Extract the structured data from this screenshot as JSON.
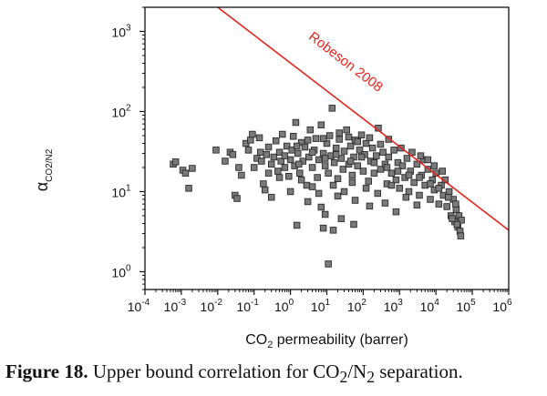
{
  "caption": {
    "label": "Figure 18.",
    "text_parts": [
      "Upper bound correlation for CO",
      "2",
      "/N",
      "2",
      " separation."
    ]
  },
  "chart_data": {
    "type": "scatter",
    "title": "",
    "xlabel": {
      "base": "CO",
      "sub": "2",
      "rest": " permeability (barrer)"
    },
    "ylabel": {
      "base": "α",
      "sub": "CO2/N2"
    },
    "xscale": "log",
    "yscale": "log",
    "xlim": [
      0.0001,
      1000000
    ],
    "ylim": [
      0.6,
      2000
    ],
    "xticks": [
      {
        "value": 0.0001,
        "base": "10",
        "exp": "-4"
      },
      {
        "value": 0.001,
        "base": "10",
        "exp": "-3"
      },
      {
        "value": 0.01,
        "base": "10",
        "exp": "-2"
      },
      {
        "value": 0.1,
        "base": "10",
        "exp": "-1"
      },
      {
        "value": 1,
        "base": "10",
        "exp": "0"
      },
      {
        "value": 10,
        "base": "10",
        "exp": "1"
      },
      {
        "value": 100,
        "base": "10",
        "exp": "2"
      },
      {
        "value": 1000,
        "base": "10",
        "exp": "3"
      },
      {
        "value": 10000,
        "base": "10",
        "exp": "4"
      },
      {
        "value": 100000,
        "base": "10",
        "exp": "5"
      },
      {
        "value": 1000000,
        "base": "10",
        "exp": "6"
      }
    ],
    "yticks": [
      {
        "value": 1,
        "base": "10",
        "exp": "0"
      },
      {
        "value": 10,
        "base": "10",
        "exp": "1"
      },
      {
        "value": 100,
        "base": "10",
        "exp": "2"
      },
      {
        "value": 1000,
        "base": "10",
        "exp": "3"
      }
    ],
    "upper_bound": {
      "name": "Robeson 2008",
      "color": "#e2231a",
      "x": [
        0.01,
        1000000
      ],
      "y": [
        2000,
        3.3
      ]
    },
    "marker": {
      "shape": "square",
      "fill": "#7a7a7a",
      "stroke": "#2b2b2b"
    },
    "series": [
      {
        "points": [
          [
            0.0006,
            22
          ],
          [
            0.0007,
            23.5
          ],
          [
            0.0011,
            18.5
          ],
          [
            0.0013,
            17
          ],
          [
            0.002,
            19.5
          ],
          [
            0.0016,
            11
          ],
          [
            0.009,
            33
          ],
          [
            0.016,
            24
          ],
          [
            0.022,
            31
          ],
          [
            0.026,
            29
          ],
          [
            0.03,
            9
          ],
          [
            0.034,
            8.2
          ],
          [
            0.038,
            20
          ],
          [
            0.045,
            16
          ],
          [
            0.06,
            40
          ],
          [
            0.07,
            33
          ],
          [
            0.08,
            44
          ],
          [
            0.09,
            52
          ],
          [
            0.1,
            20
          ],
          [
            0.12,
            26
          ],
          [
            0.14,
            47
          ],
          [
            0.16,
            24
          ],
          [
            0.18,
            12.5
          ],
          [
            0.2,
            10.5
          ],
          [
            0.22,
            29
          ],
          [
            0.25,
            36
          ],
          [
            0.3,
            22
          ],
          [
            0.35,
            27
          ],
          [
            0.4,
            43
          ],
          [
            0.45,
            18
          ],
          [
            0.5,
            31
          ],
          [
            0.55,
            24
          ],
          [
            0.6,
            52
          ],
          [
            0.7,
            20
          ],
          [
            0.8,
            37
          ],
          [
            0.9,
            15.5
          ],
          [
            1,
            25
          ],
          [
            1.1,
            33
          ],
          [
            1.2,
            49
          ],
          [
            1.3,
            21
          ],
          [
            1.4,
            73
          ],
          [
            1.6,
            30
          ],
          [
            1.8,
            17
          ],
          [
            2,
            41
          ],
          [
            2.2,
            24
          ],
          [
            2.5,
            36
          ],
          [
            2.8,
            12
          ],
          [
            3.2,
            27
          ],
          [
            3.5,
            59
          ],
          [
            4,
            20
          ],
          [
            4.5,
            33
          ],
          [
            5,
            46
          ],
          [
            5.5,
            15
          ],
          [
            6,
            25
          ],
          [
            7,
            68
          ],
          [
            8,
            30
          ],
          [
            9,
            21
          ],
          [
            10,
            40
          ],
          [
            11,
            17
          ],
          [
            12,
            50
          ],
          [
            13,
            28
          ],
          [
            14,
            110
          ],
          [
            16,
            23
          ],
          [
            18,
            35
          ],
          [
            20,
            14.5
          ],
          [
            22,
            45
          ],
          [
            25,
            26
          ],
          [
            28,
            19
          ],
          [
            30,
            32
          ],
          [
            35,
            59
          ],
          [
            40,
            22
          ],
          [
            45,
            37
          ],
          [
            50,
            16
          ],
          [
            55,
            27
          ],
          [
            60,
            44
          ],
          [
            70,
            21
          ],
          [
            80,
            33
          ],
          [
            90,
            51
          ],
          [
            100,
            18
          ],
          [
            110,
            29
          ],
          [
            120,
            40
          ],
          [
            140,
            13.5
          ],
          [
            160,
            24
          ],
          [
            180,
            35
          ],
          [
            200,
            17
          ],
          [
            230,
            28
          ],
          [
            260,
            62
          ],
          [
            300,
            19
          ],
          [
            350,
            31
          ],
          [
            400,
            22
          ],
          [
            450,
            12.5
          ],
          [
            500,
            27
          ],
          [
            600,
            17
          ],
          [
            700,
            33
          ],
          [
            800,
            14
          ],
          [
            900,
            23
          ],
          [
            1000,
            11
          ],
          [
            1200,
            21
          ],
          [
            1400,
            15
          ],
          [
            1600,
            26
          ],
          [
            1800,
            10
          ],
          [
            2000,
            18
          ],
          [
            2500,
            13
          ],
          [
            3000,
            22
          ],
          [
            3500,
            9
          ],
          [
            4000,
            16
          ],
          [
            4500,
            25
          ],
          [
            5000,
            12
          ],
          [
            6000,
            19
          ],
          [
            7000,
            8
          ],
          [
            8000,
            14
          ],
          [
            9000,
            10.5
          ],
          [
            10000,
            17
          ],
          [
            12000,
            7
          ],
          [
            14000,
            12
          ],
          [
            16000,
            9
          ],
          [
            18000,
            14
          ],
          [
            20000,
            6.5
          ],
          [
            23000,
            10
          ],
          [
            26000,
            5
          ],
          [
            30000,
            8
          ],
          [
            33000,
            4.2
          ],
          [
            36000,
            6
          ],
          [
            40000,
            3.6
          ],
          [
            43000,
            5
          ],
          [
            46000,
            3.2
          ],
          [
            50000,
            4.4
          ],
          [
            48000,
            2.8
          ],
          [
            38000,
            3.9
          ],
          [
            28000,
            4.6
          ],
          [
            1.5,
            3.8
          ],
          [
            9,
            5.2
          ],
          [
            8,
            3.5
          ],
          [
            15,
            3.3
          ],
          [
            25,
            4.6
          ],
          [
            55,
            3.9
          ],
          [
            7,
            6.4
          ],
          [
            0.3,
            8.5
          ],
          [
            3,
            7.5
          ],
          [
            20,
            8.8
          ],
          [
            60,
            7.8
          ],
          [
            150,
            6.6
          ],
          [
            400,
            7.2
          ],
          [
            800,
            5.6
          ],
          [
            11,
            1.25
          ],
          [
            0.5,
            15
          ],
          [
            1,
            10
          ],
          [
            2,
            14
          ],
          [
            4,
            11.5
          ],
          [
            6,
            9.5
          ],
          [
            15,
            12
          ],
          [
            30,
            10
          ],
          [
            50,
            13
          ],
          [
            120,
            11
          ],
          [
            250,
            9.5
          ],
          [
            600,
            12
          ],
          [
            1500,
            8.5
          ],
          [
            3000,
            6.8
          ],
          [
            1.5,
            37
          ],
          [
            3,
            44
          ],
          [
            8,
            46
          ],
          [
            22,
            54
          ],
          [
            40,
            48
          ],
          [
            70,
            42
          ],
          [
            150,
            47
          ],
          [
            300,
            39
          ],
          [
            500,
            45
          ],
          [
            1100,
            35
          ],
          [
            2200,
            31
          ],
          [
            3800,
            28
          ],
          [
            6000,
            25
          ],
          [
            9000,
            21
          ],
          [
            15000,
            18
          ],
          [
            0.15,
            31
          ],
          [
            0.25,
            17
          ],
          [
            0.7,
            28
          ],
          [
            1.7,
            22
          ],
          [
            4,
            31
          ],
          [
            9,
            26
          ],
          [
            18,
            29
          ],
          [
            45,
            24
          ],
          [
            90,
            27
          ],
          [
            200,
            23
          ],
          [
            450,
            20
          ],
          [
            900,
            18
          ],
          [
            1800,
            16
          ],
          [
            3500,
            15
          ],
          [
            7000,
            12.5
          ],
          [
            12000,
            11
          ],
          [
            22000,
            8.5
          ],
          [
            35000,
            7
          ]
        ]
      }
    ]
  }
}
